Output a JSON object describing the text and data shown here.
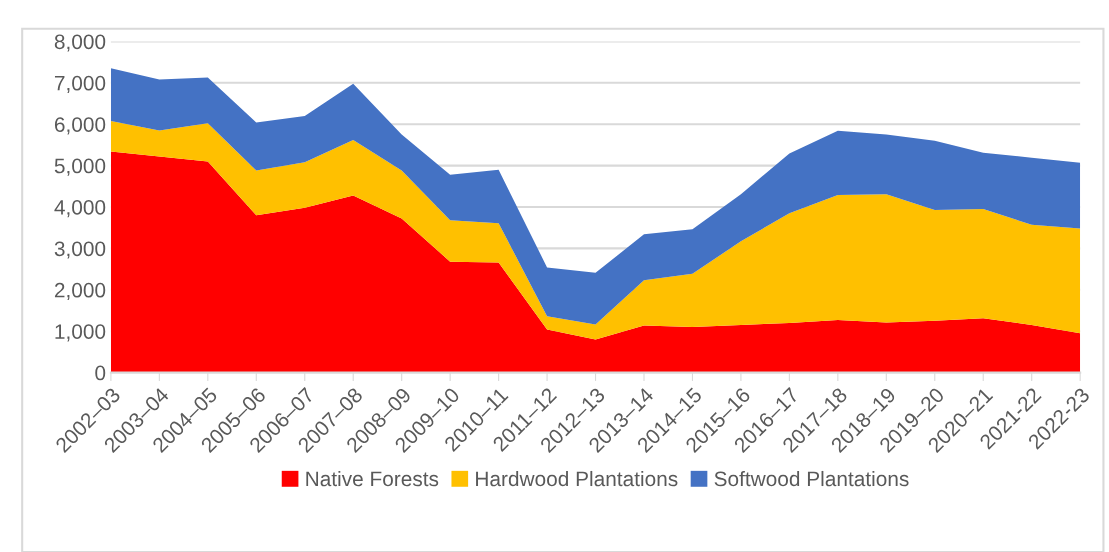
{
  "chart_data": {
    "type": "area",
    "stacked": true,
    "categories": [
      "2002–03",
      "2003–04",
      "2004–05",
      "2005–06",
      "2006–07",
      "2007–08",
      "2008–09",
      "2009–10",
      "2010–11",
      "2011–12",
      "2012–13",
      "2013–14",
      "2014–15",
      "2015–16",
      "2016–17",
      "2017–18",
      "2018–19",
      "2019–20",
      "2020–21",
      "2021-22",
      "2022-23"
    ],
    "series": [
      {
        "name": "Native Forests",
        "color": "#ff0000",
        "values": [
          5340,
          5220,
          5100,
          3800,
          3980,
          4280,
          3720,
          2680,
          2660,
          1040,
          800,
          1140,
          1100,
          1150,
          1200,
          1270,
          1210,
          1250,
          1310,
          1150,
          950
        ]
      },
      {
        "name": "Hardwood Plantations",
        "color": "#ffc000",
        "values": [
          740,
          630,
          920,
          1080,
          1100,
          1340,
          1160,
          1000,
          950,
          320,
          360,
          1090,
          1290,
          2020,
          2650,
          3020,
          3100,
          2680,
          2640,
          2420,
          2530
        ]
      },
      {
        "name": "Softwood Plantations",
        "color": "#4472c4",
        "values": [
          1270,
          1230,
          1110,
          1160,
          1120,
          1360,
          870,
          1100,
          1290,
          1180,
          1250,
          1110,
          1070,
          1140,
          1440,
          1550,
          1440,
          1670,
          1360,
          1620,
          1590
        ]
      }
    ],
    "ylim": [
      0,
      8000
    ],
    "yticks": [
      {
        "value": 0,
        "label": "0"
      },
      {
        "value": 1000,
        "label": "1,000"
      },
      {
        "value": 2000,
        "label": "2,000"
      },
      {
        "value": 3000,
        "label": "3,000"
      },
      {
        "value": 4000,
        "label": "4,000"
      },
      {
        "value": 5000,
        "label": "5,000"
      },
      {
        "value": 6000,
        "label": "6,000"
      },
      {
        "value": 7000,
        "label": "7,000"
      },
      {
        "value": 8000,
        "label": "8,000"
      }
    ],
    "grid": "y",
    "legend": "bottom"
  }
}
